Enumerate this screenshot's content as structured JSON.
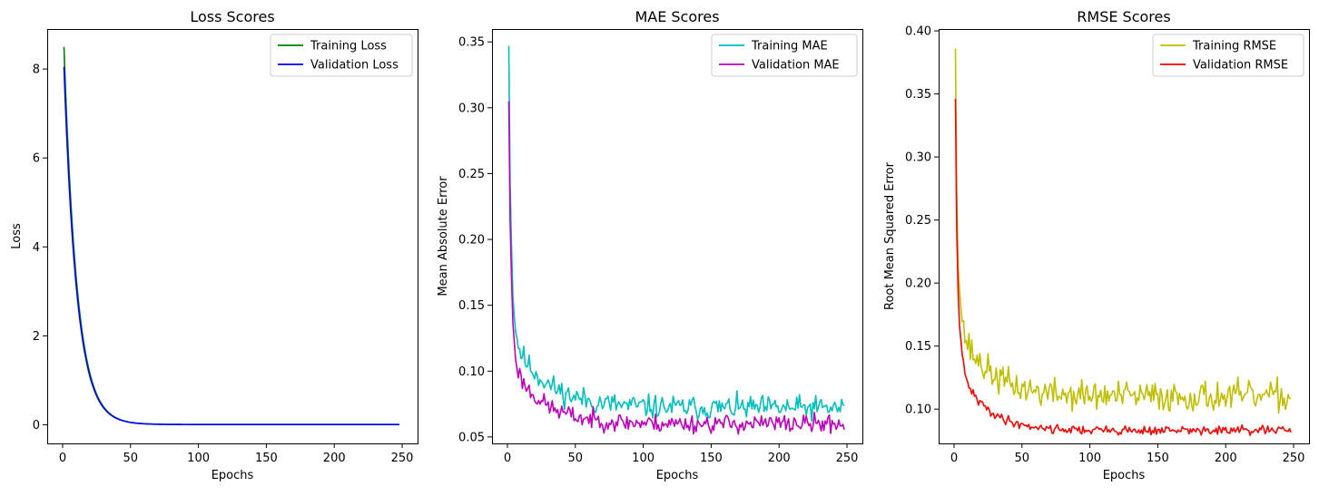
{
  "chart_data": [
    {
      "type": "line",
      "title": "Loss Scores",
      "xlabel": "Epochs",
      "ylabel": "Loss",
      "xlim": [
        -11.35,
        261.35
      ],
      "ylim": [
        -0.42,
        8.9
      ],
      "xticks": [
        0,
        50,
        100,
        150,
        200,
        250
      ],
      "yticks": [
        0,
        2,
        4,
        6,
        8
      ],
      "legend": "top-right",
      "series": [
        {
          "name": "Training Loss",
          "color": "#008000",
          "gen": {
            "kind": "exp",
            "start": 8.5,
            "end": 0.005,
            "k": 0.105,
            "noise": 0,
            "seed": 1
          }
        },
        {
          "name": "Validation Loss",
          "color": "#0000ff",
          "gen": {
            "kind": "exp",
            "start": 8.05,
            "end": 0.005,
            "k": 0.105,
            "noise": 0,
            "seed": 2
          }
        }
      ]
    },
    {
      "type": "line",
      "title": "MAE Scores",
      "xlabel": "Epochs",
      "ylabel": "Mean Absolute Error",
      "xlim": [
        -11.35,
        261.35
      ],
      "ylim": [
        0.0451,
        0.3598
      ],
      "xticks": [
        0,
        50,
        100,
        150,
        200,
        250
      ],
      "yticks": [
        0.05,
        0.1,
        0.15,
        0.2,
        0.25,
        0.3,
        0.35
      ],
      "legend": "top-right",
      "series": [
        {
          "name": "Training MAE",
          "color": "#00bfbf",
          "gen": {
            "kind": "curve",
            "start": 0.347,
            "asym": 0.072,
            "amp1": 0.205,
            "k1": 0.55,
            "amp2": 0.058,
            "k2": 0.04,
            "noise": 0.0045,
            "seed": 11
          }
        },
        {
          "name": "Validation MAE",
          "color": "#bf00bf",
          "gen": {
            "kind": "curve",
            "start": 0.305,
            "asym": 0.06,
            "amp1": 0.185,
            "k1": 0.55,
            "amp2": 0.05,
            "k2": 0.045,
            "noise": 0.0035,
            "seed": 23
          }
        }
      ]
    },
    {
      "type": "line",
      "title": "RMSE Scores",
      "xlabel": "Epochs",
      "ylabel": "Root Mean Squared Error",
      "xlim": [
        -11.35,
        261.35
      ],
      "ylim": [
        0.0728,
        0.4015
      ],
      "xticks": [
        0,
        50,
        100,
        150,
        200,
        250
      ],
      "yticks": [
        0.1,
        0.15,
        0.2,
        0.25,
        0.3,
        0.35,
        0.4
      ],
      "legend": "top-right",
      "series": [
        {
          "name": "Training RMSE",
          "color": "#bfbf00",
          "gen": {
            "kind": "curve",
            "start": 0.386,
            "asym": 0.11,
            "amp1": 0.165,
            "k1": 0.5,
            "amp2": 0.06,
            "k2": 0.045,
            "noise": 0.006,
            "seed": 37
          }
        },
        {
          "name": "Validation RMSE",
          "color": "#ff0000",
          "gen": {
            "kind": "curve",
            "start": 0.346,
            "asym": 0.083,
            "amp1": 0.15,
            "k1": 0.45,
            "amp2": 0.055,
            "k2": 0.05,
            "noise": 0.0018,
            "seed": 41
          }
        }
      ]
    }
  ]
}
